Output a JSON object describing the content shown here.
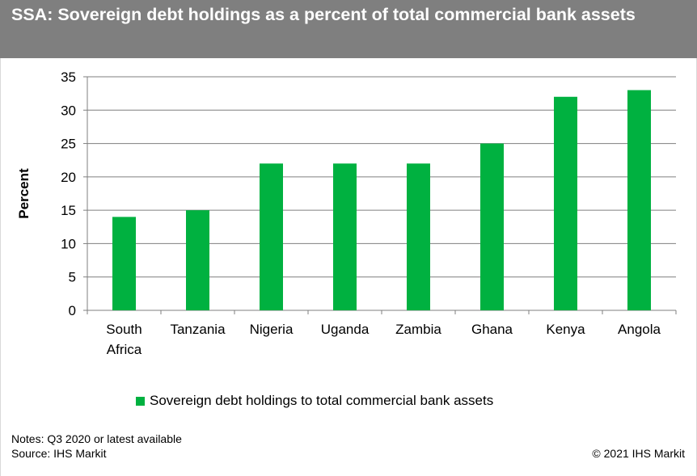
{
  "header": {
    "title": "SSA: Sovereign debt holdings as a percent of total commercial bank assets",
    "background": "#7f7f7f"
  },
  "chart_data": {
    "type": "bar",
    "title": "SSA: Sovereign debt holdings as a percent of total commercial bank assets",
    "categories": [
      "South Africa",
      "Tanzania",
      "Nigeria",
      "Uganda",
      "Zambia",
      "Ghana",
      "Kenya",
      "Angola"
    ],
    "category_lines": [
      [
        "South",
        "Africa"
      ],
      [
        "Tanzania"
      ],
      [
        "Nigeria"
      ],
      [
        "Uganda"
      ],
      [
        "Zambia"
      ],
      [
        "Ghana"
      ],
      [
        "Kenya"
      ],
      [
        "Angola"
      ]
    ],
    "series": [
      {
        "name": "Sovereign debt holdings to total commercial bank assets",
        "values": [
          14,
          15,
          22,
          22,
          22,
          25,
          32,
          33
        ],
        "color": "#00b140"
      }
    ],
    "xlabel": "",
    "ylabel": "Percent",
    "ylim": [
      0,
      35
    ],
    "yticks": [
      0,
      5,
      10,
      15,
      20,
      25,
      30,
      35
    ],
    "grid": true,
    "legend_position": "bottom"
  },
  "legend": {
    "label": "Sovereign debt holdings to total commercial bank assets"
  },
  "footer": {
    "notes": "Notes:  Q3 2020 or latest available",
    "source": "Source: IHS Markit",
    "copyright": "© 2021 IHS Markit"
  }
}
